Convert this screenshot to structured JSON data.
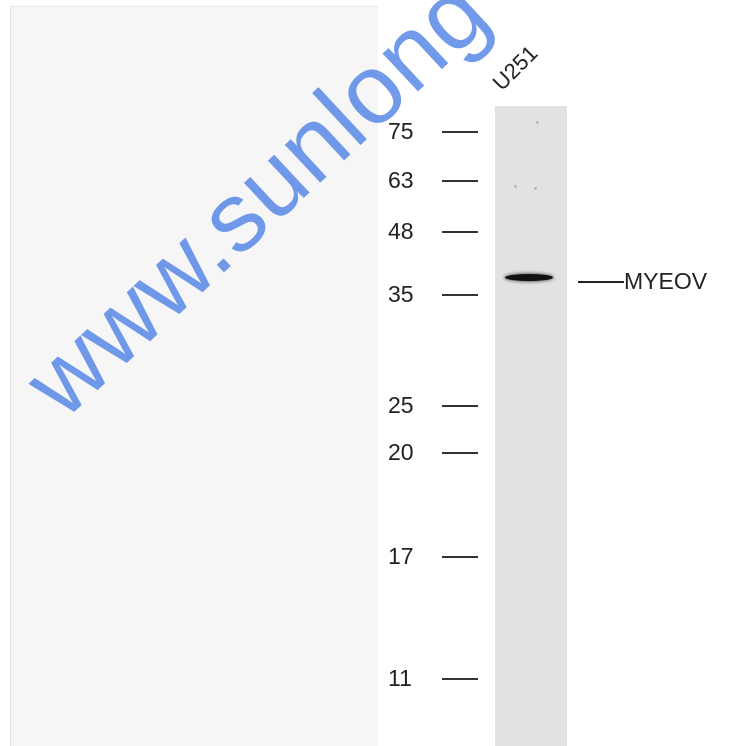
{
  "watermark": {
    "text": "www.sunlong"
  },
  "lane": {
    "label": "U251"
  },
  "markers": [
    {
      "label": "75"
    },
    {
      "label": "63"
    },
    {
      "label": "48"
    },
    {
      "label": "35"
    },
    {
      "label": "25"
    },
    {
      "label": "20"
    },
    {
      "label": "17"
    },
    {
      "label": "11"
    }
  ],
  "target": {
    "label": "MYEOV"
  },
  "colors": {
    "watermark": "#4a7ee6",
    "lane": "#e2e2e2",
    "band": "#111111"
  }
}
